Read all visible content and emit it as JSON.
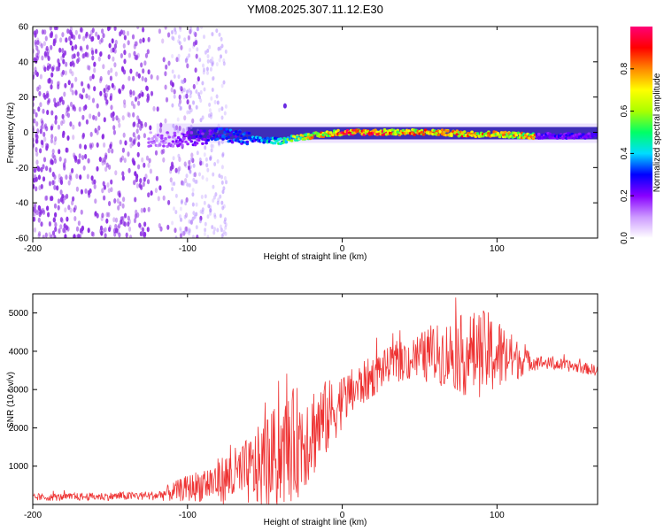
{
  "title": "YM08.2025.307.11.12.E30",
  "chart_data": [
    {
      "type": "heatmap",
      "title": "YM08.2025.307.11.12.E30",
      "xlabel": "Height of straight line (km)",
      "ylabel": "Frequency (Hz)",
      "xlim": [
        -200,
        165
      ],
      "ylim": [
        -60,
        60
      ],
      "xticks": [
        "-200",
        "-100",
        "0",
        "100"
      ],
      "xtick_values": [
        -200,
        -100,
        0,
        100
      ],
      "yticks": [
        "60",
        "40",
        "20",
        "0",
        "-20",
        "-40",
        "-60"
      ],
      "ytick_values": [
        60,
        40,
        20,
        0,
        -20,
        -40,
        -60
      ],
      "colorbar": {
        "label": "Normalized spectral amplitude",
        "range": [
          0,
          1
        ],
        "ticks": [
          "0.0",
          "0.2",
          "0.4",
          "0.6",
          "0.8"
        ],
        "tick_values": [
          0.0,
          0.2,
          0.4,
          0.6,
          0.8
        ],
        "colors": [
          "#ffffff",
          "#cc99ff",
          "#8800ff",
          "#0000ff",
          "#00ddff",
          "#00ff66",
          "#aaff00",
          "#ffff00",
          "#ff8800",
          "#ff0000",
          "#ff0077"
        ]
      },
      "ridge": {
        "x": [
          -120,
          -100,
          -80,
          -60,
          -40,
          -30,
          -20,
          -10,
          0,
          20,
          40,
          60,
          80,
          100,
          120
        ],
        "freq": [
          -4,
          -4,
          -1,
          -4,
          -5,
          -3,
          -2,
          -1,
          0,
          0,
          0,
          0,
          -1,
          -1,
          -2
        ],
        "amplitude": [
          0.15,
          0.25,
          0.35,
          0.4,
          0.55,
          0.7,
          0.85,
          0.9,
          1.0,
          1.0,
          0.95,
          0.9,
          0.95,
          0.9,
          0.85
        ]
      },
      "colors": {
        "noise": "#8a2be2",
        "band": "#2a1ab0"
      }
    },
    {
      "type": "line",
      "xlabel": "Height of straight line (km)",
      "ylabel": "SNR (10 * v/v)",
      "xlim": [
        -200,
        165
      ],
      "ylim": [
        0,
        5500
      ],
      "xticks": [
        "-200",
        "-100",
        "0",
        "100"
      ],
      "xtick_values": [
        -200,
        -100,
        0,
        100
      ],
      "yticks": [
        "1000",
        "2000",
        "3000",
        "4000",
        "5000"
      ],
      "ytick_values": [
        1000,
        2000,
        3000,
        4000,
        5000
      ],
      "series": [
        {
          "name": "SNR",
          "color": "#ee3333",
          "envelope_x": [
            -200,
            -120,
            -110,
            -90,
            -80,
            -60,
            -50,
            -40,
            -30,
            -20,
            -10,
            0,
            10,
            20,
            30,
            50,
            70,
            80,
            90,
            100,
            110,
            120,
            130,
            150,
            165
          ],
          "envelope_base": [
            180,
            230,
            320,
            520,
            620,
            850,
            1050,
            1300,
            1600,
            1900,
            2250,
            2700,
            3050,
            3350,
            3650,
            3850,
            3950,
            3900,
            3950,
            3900,
            3800,
            3750,
            3700,
            3600,
            3500
          ],
          "envelope_spread": [
            90,
            120,
            250,
            450,
            600,
            900,
            1200,
            1400,
            1500,
            1300,
            1000,
            700,
            600,
            550,
            450,
            650,
            900,
            1100,
            1150,
            1050,
            650,
            280,
            170,
            150,
            150
          ]
        }
      ]
    }
  ]
}
